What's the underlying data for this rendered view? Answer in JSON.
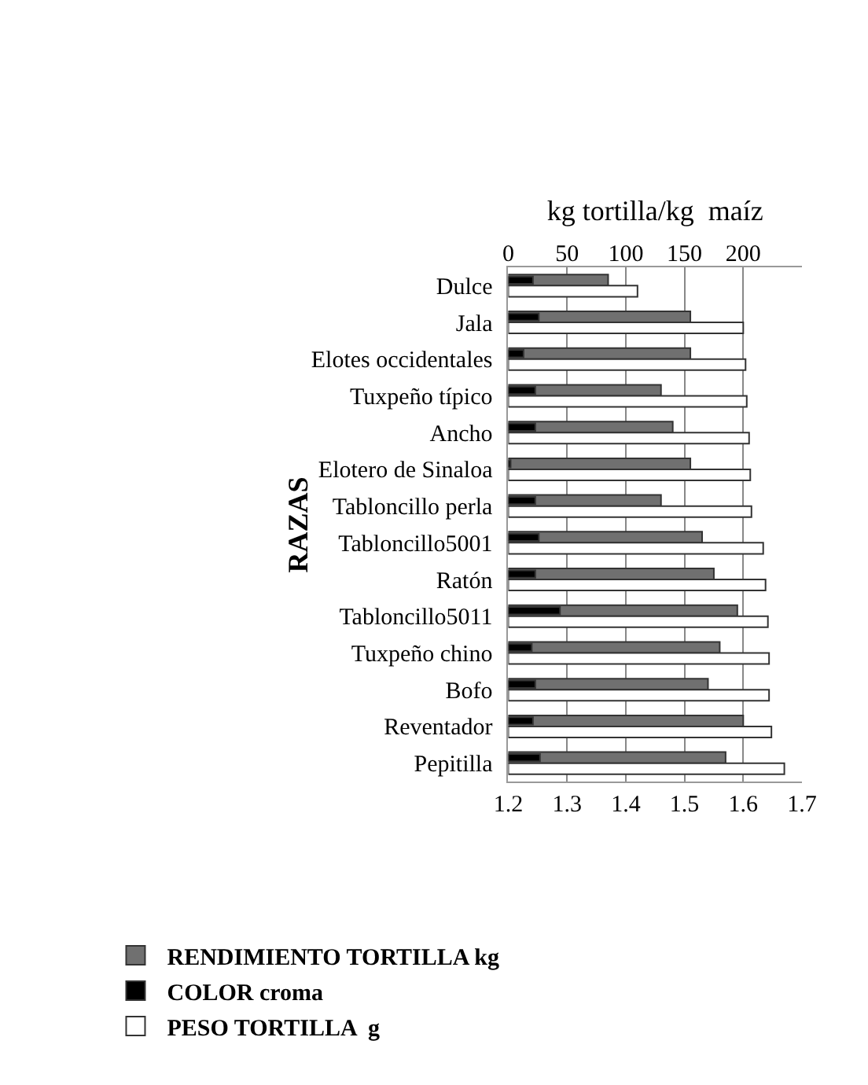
{
  "chart_data": {
    "type": "bar",
    "orientation": "horizontal",
    "ylabel": "RAZAS",
    "x2label": "kg tortilla/kg  maíz",
    "categories": [
      "Dulce",
      "Jala",
      "Elotes occidentales",
      "Tuxpeño típico",
      "Ancho",
      "Elotero de Sinaloa",
      "Tabloncillo perla",
      "Tabloncillo5001",
      "Ratón",
      "Tabloncillo5011",
      "Tuxpeño chino",
      "Bofo",
      "Reventador",
      "Pepitilla"
    ],
    "series": [
      {
        "name": "RENDIMIENTO TORTILLA kg",
        "color": "#707070",
        "values": [
          1.37,
          1.51,
          1.51,
          1.46,
          1.48,
          1.51,
          1.46,
          1.53,
          1.55,
          1.59,
          1.56,
          1.54,
          1.6,
          1.57
        ]
      },
      {
        "name": "COLOR croma",
        "color": "#000000",
        "axis": "x2",
        "values": [
          21,
          26,
          13,
          23,
          23,
          2,
          23,
          26,
          23,
          44,
          20,
          23,
          21,
          27
        ]
      },
      {
        "name": "PESO TORTILLA  g",
        "color": "#ffffff",
        "axis": "x2",
        "values": [
          110,
          200,
          202,
          203,
          205,
          206,
          207,
          217,
          219,
          221,
          222,
          222,
          224,
          235
        ]
      }
    ],
    "xlim": [
      1.2,
      1.7
    ],
    "xticks": [
      1.2,
      1.3,
      1.4,
      1.5,
      1.6,
      1.7
    ],
    "x2lim": [
      0,
      250
    ],
    "x2ticks": [
      0,
      50,
      100,
      150,
      200
    ],
    "grid": "x",
    "legend": "bottom"
  }
}
